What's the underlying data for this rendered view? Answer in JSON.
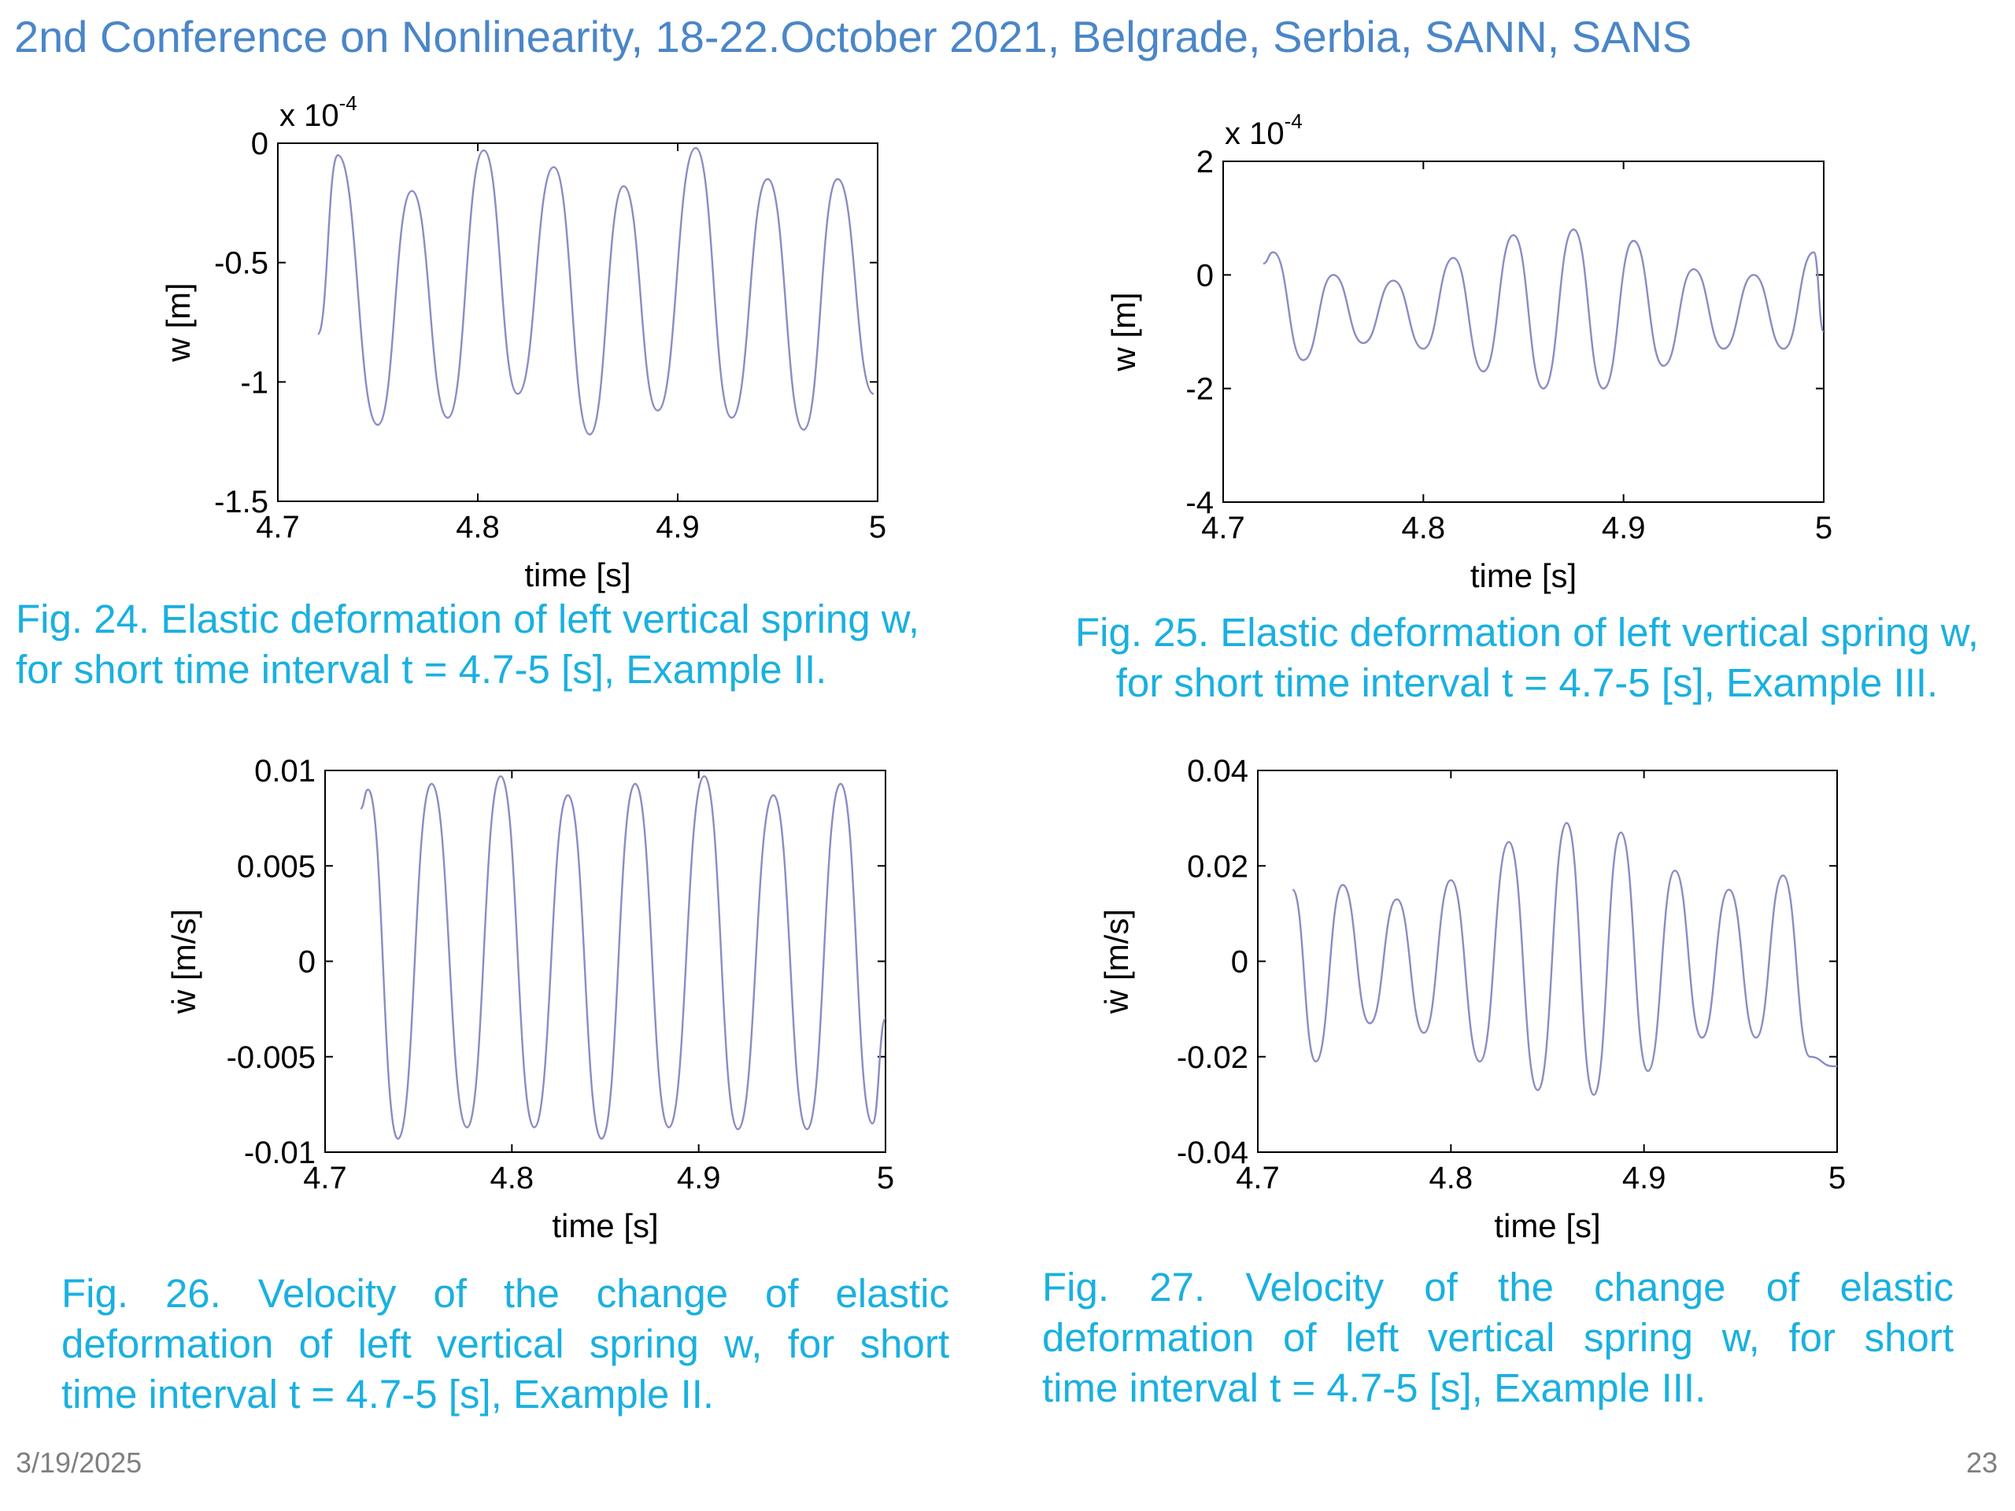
{
  "slide": {
    "title": "2nd Conference on Nonlinearity, 18-22.October 2021, Belgrade, Serbia, SANN, SANS",
    "date": "3/19/2025",
    "page_number": "23",
    "text_color": "#1ab0e0",
    "title_color": "#4a86c8"
  },
  "captions": [
    [
      "Fig. 24. Elastic deformation of left vertical spring w,",
      "for short time interval t = 4.7-5 [s],  Example II."
    ],
    [
      "Fig. 25. Elastic deformation of left vertical spring w,",
      "for short time interval t = 4.7-5 [s],  Example III."
    ],
    [
      "Fig. 26. Velocity of the change of elastic",
      "deformation of left vertical spring w, for short",
      "time interval t = 4.7-5 [s], Example II."
    ],
    [
      "Fig. 27. Velocity of the change of elastic",
      "deformation of left vertical spring w, for short",
      "time interval t = 4.7-5 [s], Example III."
    ]
  ],
  "chart_data": [
    {
      "type": "line",
      "xlabel": "time [s]",
      "ylabel": "w [m]",
      "y_multiplier": "x 10",
      "y_multiplier_exponent": "-4",
      "xlim": [
        4.7,
        5
      ],
      "ylim": [
        -1.5,
        0
      ],
      "xticks": [
        4.7,
        4.8,
        4.9,
        5
      ],
      "xtick_labels": [
        "4.7",
        "4.8",
        "4.9",
        "5"
      ],
      "yticks": [
        0,
        -0.5,
        -1,
        -1.5
      ],
      "ytick_labels": [
        "0",
        "-0.5",
        "-1",
        "-1.5"
      ],
      "line_color": "#8a8cc4",
      "series": [
        {
          "x": [
            4.72,
            4.73,
            4.75,
            4.767,
            4.785,
            4.803,
            4.82,
            4.838,
            4.856,
            4.873,
            4.89,
            4.909,
            4.927,
            4.945,
            4.963,
            4.98,
            4.998
          ],
          "y": [
            -0.8,
            -0.05,
            -1.18,
            -0.2,
            -1.15,
            -0.03,
            -1.05,
            -0.1,
            -1.22,
            -0.18,
            -1.12,
            -0.02,
            -1.15,
            -0.15,
            -1.2,
            -0.15,
            -1.05
          ]
        }
      ]
    },
    {
      "type": "line",
      "xlabel": "time [s]",
      "ylabel": "w [m]",
      "y_multiplier": "x 10",
      "y_multiplier_exponent": "-4",
      "xlim": [
        4.7,
        5
      ],
      "ylim": [
        -4,
        2
      ],
      "xticks": [
        4.7,
        4.8,
        4.9,
        5
      ],
      "xtick_labels": [
        "4.7",
        "4.8",
        "4.9",
        "5"
      ],
      "yticks": [
        2,
        0,
        -2,
        -4
      ],
      "ytick_labels": [
        "2",
        "0",
        "-2",
        "-4"
      ],
      "line_color": "#8a8cc4",
      "series": [
        {
          "x": [
            4.72,
            4.725,
            4.74,
            4.755,
            4.77,
            4.785,
            4.8,
            4.815,
            4.83,
            4.845,
            4.86,
            4.875,
            4.89,
            4.905,
            4.92,
            4.935,
            4.95,
            4.965,
            4.98,
            4.995,
            5.0
          ],
          "y": [
            0.2,
            0.4,
            -1.5,
            0.0,
            -1.2,
            -0.1,
            -1.3,
            0.3,
            -1.7,
            0.7,
            -2.0,
            0.8,
            -2.0,
            0.6,
            -1.6,
            0.1,
            -1.3,
            0.0,
            -1.3,
            0.4,
            -1.0
          ]
        }
      ]
    },
    {
      "type": "line",
      "xlabel": "time [s]",
      "ylabel": "ẇ [m/s]",
      "xlim": [
        4.7,
        5
      ],
      "ylim": [
        -0.01,
        0.01
      ],
      "xticks": [
        4.7,
        4.8,
        4.9,
        5
      ],
      "xtick_labels": [
        "4.7",
        "4.8",
        "4.9",
        "5"
      ],
      "yticks": [
        0.01,
        0.005,
        0,
        -0.005,
        -0.01
      ],
      "ytick_labels": [
        "0.01",
        "0.005",
        "0",
        "-0.005",
        "-0.01"
      ],
      "line_color": "#8a8cc4",
      "series": [
        {
          "x": [
            4.719,
            4.723,
            4.739,
            4.757,
            4.776,
            4.794,
            4.812,
            4.83,
            4.848,
            4.866,
            4.884,
            4.903,
            4.921,
            4.94,
            4.958,
            4.976,
            4.993,
            5.0
          ],
          "y": [
            0.008,
            0.009,
            -0.0093,
            0.0093,
            -0.0087,
            0.0097,
            -0.0087,
            0.0087,
            -0.0093,
            0.0093,
            -0.0087,
            0.0097,
            -0.0088,
            0.0087,
            -0.0088,
            0.0093,
            -0.0085,
            -0.003
          ]
        }
      ]
    },
    {
      "type": "line",
      "xlabel": "time [s]",
      "ylabel": "ẇ [m/s]",
      "xlim": [
        4.7,
        5
      ],
      "ylim": [
        -0.04,
        0.04
      ],
      "xticks": [
        4.7,
        4.8,
        4.9,
        5
      ],
      "xtick_labels": [
        "4.7",
        "4.8",
        "4.9",
        "5"
      ],
      "yticks": [
        0.04,
        0.02,
        0,
        -0.02,
        -0.04
      ],
      "ytick_labels": [
        "0.04",
        "0.02",
        "0",
        "-0.02",
        "-0.04"
      ],
      "line_color": "#8a8cc4",
      "series": [
        {
          "x": [
            4.718,
            4.73,
            4.744,
            4.758,
            4.772,
            4.786,
            4.8,
            4.815,
            4.83,
            4.845,
            4.86,
            4.874,
            4.888,
            4.902,
            4.916,
            4.93,
            4.944,
            4.958,
            4.972,
            4.986,
            4.998,
            5.0
          ],
          "y": [
            0.015,
            -0.021,
            0.016,
            -0.013,
            0.013,
            -0.015,
            0.017,
            -0.021,
            0.025,
            -0.027,
            0.029,
            -0.028,
            0.027,
            -0.023,
            0.019,
            -0.016,
            0.015,
            -0.016,
            0.018,
            -0.02,
            -0.022,
            -0.022
          ]
        }
      ]
    }
  ]
}
